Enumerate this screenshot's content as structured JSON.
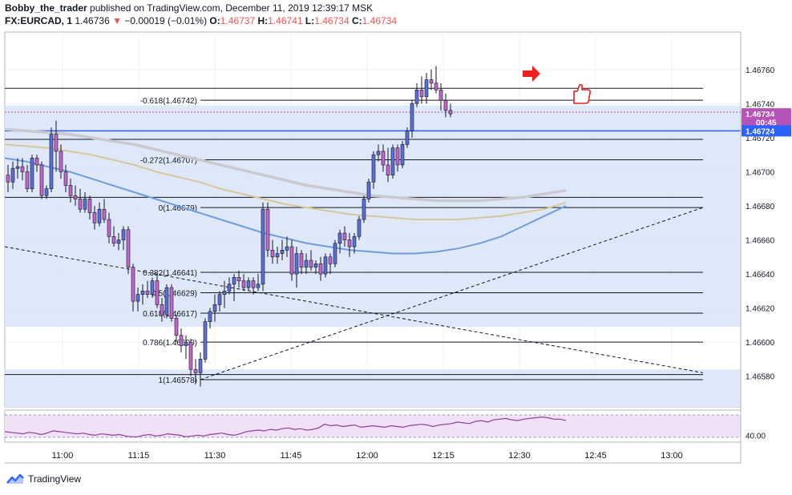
{
  "header": {
    "author": "Bobby_the_trader",
    "published_text": "published on TradingView.com, December 11, 2019 12:39:17 MSK",
    "symbol": "FX:EURCAD, 1",
    "last": "1.46736",
    "change": "−0.00019 (−0.01%)",
    "open_label": "O:",
    "open": "1.46737",
    "high_label": "H:",
    "high": "1.46741",
    "low_label": "L:",
    "low": "1.46734",
    "close_label": "C:",
    "close": "1.46734"
  },
  "footer": {
    "brand": "TradingView"
  },
  "colors": {
    "up": "#5b6fd6",
    "down": "#c266c9",
    "wick": "#131722",
    "zone": "#dbe6f7",
    "rsi_bg": "#f1e1f7",
    "rsi_line": "#8e3f9d",
    "ma_fast": "#6e9de0",
    "ma_mid": "#d8c79b",
    "ma_slow": "#c9c9cf",
    "price_tag_current": "#b653b8",
    "price_tag_line": "#2962ff",
    "arrow": "#ef1f1f"
  },
  "chart_data": {
    "type": "candlestick",
    "timeframe": "1 minute",
    "x_ticks": [
      "11:00",
      "11:15",
      "11:30",
      "11:45",
      "12:00",
      "12:15",
      "12:30",
      "12:45",
      "13:00"
    ],
    "y_ticks": [
      1.4658,
      1.466,
      1.4662,
      1.4664,
      1.4666,
      1.4668,
      1.467,
      1.4672,
      1.4674,
      1.4676
    ],
    "y_tick_labels": [
      "1.46580",
      "1.46600",
      "1.46620",
      "1.46640",
      "1.46660",
      "1.46680",
      "1.46700",
      "1.46720",
      "1.46740",
      "1.46760"
    ],
    "ylim": [
      1.46562,
      1.46782
    ],
    "xlim": [
      0,
      114
    ],
    "x_tick_positions": [
      12,
      27,
      42,
      57,
      72,
      87,
      102,
      117,
      132
    ],
    "candles": [
      [
        1.46698,
        1.46704,
        1.46688,
        1.46694
      ],
      [
        1.46694,
        1.46706,
        1.4669,
        1.46702
      ],
      [
        1.46702,
        1.46708,
        1.46696,
        1.46703
      ],
      [
        1.46703,
        1.46708,
        1.46695,
        1.467
      ],
      [
        1.467,
        1.46704,
        1.46688,
        1.4669
      ],
      [
        1.4669,
        1.4671,
        1.46688,
        1.46708
      ],
      [
        1.46708,
        1.4671,
        1.467,
        1.46704
      ],
      [
        1.46704,
        1.46706,
        1.46684,
        1.46686
      ],
      [
        1.46686,
        1.46692,
        1.46684,
        1.4669
      ],
      [
        1.4669,
        1.46726,
        1.46688,
        1.46722
      ],
      [
        1.46722,
        1.4673,
        1.467,
        1.46712
      ],
      [
        1.46712,
        1.46716,
        1.46696,
        1.467
      ],
      [
        1.467,
        1.46704,
        1.46688,
        1.46692
      ],
      [
        1.46692,
        1.46696,
        1.46682,
        1.46686
      ],
      [
        1.46686,
        1.46692,
        1.4668,
        1.46684
      ],
      [
        1.46684,
        1.4669,
        1.46676,
        1.46678
      ],
      [
        1.46678,
        1.46688,
        1.46676,
        1.46684
      ],
      [
        1.46684,
        1.46686,
        1.46672,
        1.46676
      ],
      [
        1.46676,
        1.4668,
        1.46666,
        1.4667
      ],
      [
        1.4667,
        1.46682,
        1.46668,
        1.46678
      ],
      [
        1.46678,
        1.46684,
        1.4667,
        1.46672
      ],
      [
        1.46672,
        1.46676,
        1.46658,
        1.46662
      ],
      [
        1.46662,
        1.46668,
        1.46656,
        1.46658
      ],
      [
        1.46658,
        1.46664,
        1.46654,
        1.4666
      ],
      [
        1.4666,
        1.46668,
        1.46654,
        1.46666
      ],
      [
        1.46666,
        1.46668,
        1.4664,
        1.46644
      ],
      [
        1.46644,
        1.46646,
        1.46618,
        1.46624
      ],
      [
        1.46624,
        1.46632,
        1.46618,
        1.46628
      ],
      [
        1.46628,
        1.46634,
        1.46622,
        1.4663
      ],
      [
        1.4663,
        1.46636,
        1.46626,
        1.46628
      ],
      [
        1.46628,
        1.46638,
        1.46626,
        1.46636
      ],
      [
        1.46636,
        1.4664,
        1.4662,
        1.46622
      ],
      [
        1.46622,
        1.46626,
        1.46612,
        1.46616
      ],
      [
        1.46616,
        1.46634,
        1.46614,
        1.46632
      ],
      [
        1.46632,
        1.46634,
        1.46612,
        1.46614
      ],
      [
        1.46614,
        1.46616,
        1.466,
        1.46604
      ],
      [
        1.46604,
        1.46608,
        1.46594,
        1.46598
      ],
      [
        1.46598,
        1.46604,
        1.4659,
        1.466
      ],
      [
        1.466,
        1.46602,
        1.4658,
        1.46584
      ],
      [
        1.46584,
        1.4659,
        1.46576,
        1.46582
      ],
      [
        1.46582,
        1.46594,
        1.46574,
        1.4659
      ],
      [
        1.4659,
        1.46614,
        1.46588,
        1.46612
      ],
      [
        1.46612,
        1.4662,
        1.46608,
        1.46618
      ],
      [
        1.46618,
        1.46628,
        1.46612,
        1.46622
      ],
      [
        1.46622,
        1.4663,
        1.46618,
        1.46628
      ],
      [
        1.46628,
        1.46636,
        1.4662,
        1.4663
      ],
      [
        1.4663,
        1.46638,
        1.46628,
        1.46634
      ],
      [
        1.46634,
        1.4664,
        1.46624,
        1.46638
      ],
      [
        1.46638,
        1.46642,
        1.46632,
        1.46636
      ],
      [
        1.46636,
        1.4664,
        1.4663,
        1.46632
      ],
      [
        1.46632,
        1.46638,
        1.4663,
        1.46636
      ],
      [
        1.46636,
        1.46638,
        1.46628,
        1.46632
      ],
      [
        1.46632,
        1.4664,
        1.4663,
        1.46634
      ],
      [
        1.46634,
        1.46682,
        1.4663,
        1.46678
      ],
      [
        1.46678,
        1.46682,
        1.4665,
        1.46654
      ],
      [
        1.46654,
        1.4666,
        1.46646,
        1.4665
      ],
      [
        1.4665,
        1.46656,
        1.46646,
        1.46652
      ],
      [
        1.46652,
        1.4666,
        1.46648,
        1.46654
      ],
      [
        1.46654,
        1.46662,
        1.4665,
        1.46656
      ],
      [
        1.46656,
        1.4666,
        1.46636,
        1.4664
      ],
      [
        1.4664,
        1.46656,
        1.46632,
        1.46652
      ],
      [
        1.46652,
        1.46654,
        1.4664,
        1.46644
      ],
      [
        1.46644,
        1.46652,
        1.4664,
        1.46648
      ],
      [
        1.46648,
        1.46654,
        1.46642,
        1.46644
      ],
      [
        1.46644,
        1.46648,
        1.4664,
        1.46646
      ],
      [
        1.46646,
        1.4665,
        1.46636,
        1.4664
      ],
      [
        1.4664,
        1.46652,
        1.46638,
        1.4665
      ],
      [
        1.4665,
        1.46652,
        1.4664,
        1.46646
      ],
      [
        1.46646,
        1.4666,
        1.46644,
        1.46658
      ],
      [
        1.46658,
        1.46666,
        1.46652,
        1.46664
      ],
      [
        1.46664,
        1.46668,
        1.46656,
        1.4666
      ],
      [
        1.4666,
        1.46664,
        1.4665,
        1.46656
      ],
      [
        1.46656,
        1.46664,
        1.46652,
        1.46662
      ],
      [
        1.46662,
        1.46674,
        1.4666,
        1.46672
      ],
      [
        1.46672,
        1.46686,
        1.4667,
        1.46684
      ],
      [
        1.46684,
        1.46696,
        1.46682,
        1.46694
      ],
      [
        1.46694,
        1.46712,
        1.4669,
        1.4671
      ],
      [
        1.4671,
        1.46716,
        1.46706,
        1.46712
      ],
      [
        1.46712,
        1.46716,
        1.467,
        1.46704
      ],
      [
        1.46704,
        1.46714,
        1.46694,
        1.46698
      ],
      [
        1.46698,
        1.46716,
        1.46696,
        1.46714
      ],
      [
        1.46714,
        1.46716,
        1.467,
        1.46704
      ],
      [
        1.46704,
        1.46718,
        1.46702,
        1.46716
      ],
      [
        1.46716,
        1.46726,
        1.46714,
        1.46724
      ],
      [
        1.46724,
        1.46742,
        1.4672,
        1.4674
      ],
      [
        1.4674,
        1.46752,
        1.46738,
        1.46748
      ],
      [
        1.46748,
        1.46756,
        1.4674,
        1.46744
      ],
      [
        1.46744,
        1.46758,
        1.4674,
        1.46754
      ],
      [
        1.46754,
        1.4676,
        1.46748,
        1.46752
      ],
      [
        1.46752,
        1.46762,
        1.46746,
        1.46748
      ],
      [
        1.46748,
        1.46752,
        1.46736,
        1.46742
      ],
      [
        1.46742,
        1.46746,
        1.46732,
        1.46736
      ],
      [
        1.46736,
        1.4674,
        1.46732,
        1.46734
      ]
    ],
    "ma_fast_values": [
      1.46708,
      1.46706,
      1.46703,
      1.467,
      1.46696,
      1.46692,
      1.46688,
      1.46684,
      1.4668,
      1.46676,
      1.46672,
      1.46668,
      1.46664,
      1.46661,
      1.46658,
      1.46656,
      1.46654,
      1.46653,
      1.46652,
      1.46652,
      1.46653,
      1.46655,
      1.46658,
      1.46662,
      1.46668,
      1.46674,
      1.4668
    ],
    "ma_mid_values": [
      1.46716,
      1.46715,
      1.46714,
      1.46712,
      1.4671,
      1.46707,
      1.46704,
      1.467,
      1.46697,
      1.46694,
      1.4669,
      1.46687,
      1.46684,
      1.46681,
      1.46679,
      1.46677,
      1.46675,
      1.46674,
      1.46673,
      1.46672,
      1.46672,
      1.46672,
      1.46673,
      1.46674,
      1.46676,
      1.46678,
      1.46682
    ],
    "ma_slow_values": [
      1.46725,
      1.46724,
      1.46723,
      1.46722,
      1.4672,
      1.46718,
      1.46716,
      1.46713,
      1.4671,
      1.46707,
      1.46704,
      1.46701,
      1.46698,
      1.46695,
      1.46692,
      1.4669,
      1.46688,
      1.46686,
      1.46685,
      1.46684,
      1.46683,
      1.46683,
      1.46683,
      1.46684,
      1.46685,
      1.46687,
      1.46689
    ],
    "fib_levels": [
      {
        "label": "1(1.46578)",
        "price": 1.46578
      },
      {
        "label": "0.786(1.46600)",
        "price": 1.466
      },
      {
        "label": "0.618(1.46617)",
        "price": 1.46617
      },
      {
        "label": "0.5(1.46629)",
        "price": 1.46629
      },
      {
        "label": "0.382(1.46641)",
        "price": 1.46641
      },
      {
        "label": "0(1.46679)",
        "price": 1.46679
      },
      {
        "label": "-0.272(1.46707)",
        "price": 1.46707
      },
      {
        "label": "-0.618(1.46742)",
        "price": 1.46742
      }
    ],
    "extra_levels": [
      1.46685,
      1.46719,
      1.46749,
      1.46581
    ],
    "price_tags": [
      {
        "label": "1.46760",
        "price": 1.4676,
        "kind": "axis"
      },
      {
        "label": "1.46734",
        "price": 1.46734,
        "kind": "current"
      },
      {
        "label": "00:45",
        "price": 1.46729,
        "kind": "countdown"
      },
      {
        "label": "1.46724",
        "price": 1.46724,
        "kind": "line"
      }
    ],
    "horizontal_line_price": 1.46724,
    "rsi": {
      "tick_label": "40.00",
      "values": [
        45,
        44,
        43,
        42,
        44,
        43,
        41,
        43,
        46,
        45,
        44,
        43,
        42,
        43,
        41,
        40,
        42,
        41,
        40,
        41,
        39,
        38,
        38,
        40,
        41,
        39,
        40,
        42,
        41,
        40,
        38,
        39,
        40,
        39,
        41,
        42,
        43,
        41,
        40,
        42,
        45,
        46,
        47,
        46,
        48,
        47,
        49,
        50,
        48,
        49,
        47,
        48,
        50,
        55,
        53,
        54,
        52,
        53,
        54,
        51,
        52,
        53,
        52,
        51,
        53,
        52,
        51,
        53,
        54,
        55,
        54,
        52,
        54,
        55,
        56,
        58,
        57,
        56,
        59,
        60,
        58,
        61,
        62,
        63,
        61,
        60,
        62,
        63,
        64,
        65,
        64,
        62,
        62,
        60
      ]
    }
  }
}
